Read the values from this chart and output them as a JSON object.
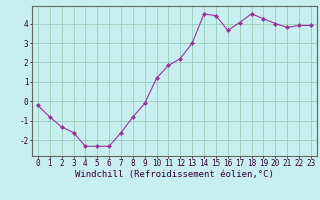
{
  "x": [
    0,
    1,
    2,
    3,
    4,
    5,
    6,
    7,
    8,
    9,
    10,
    11,
    12,
    13,
    14,
    15,
    16,
    17,
    18,
    19,
    20,
    21,
    22,
    23
  ],
  "y": [
    -0.2,
    -0.8,
    -1.3,
    -1.6,
    -2.3,
    -2.3,
    -2.3,
    -1.6,
    -0.8,
    -0.1,
    1.2,
    1.85,
    2.2,
    3.0,
    4.5,
    4.4,
    3.65,
    4.05,
    4.5,
    4.25,
    4.0,
    3.8,
    3.9,
    3.9
  ],
  "xlim": [
    -0.5,
    23.5
  ],
  "ylim": [
    -2.8,
    4.9
  ],
  "yticks": [
    -2,
    -1,
    0,
    1,
    2,
    3,
    4
  ],
  "xticks": [
    0,
    1,
    2,
    3,
    4,
    5,
    6,
    7,
    8,
    9,
    10,
    11,
    12,
    13,
    14,
    15,
    16,
    17,
    18,
    19,
    20,
    21,
    22,
    23
  ],
  "xlabel": "Windchill (Refroidissement éolien,°C)",
  "line_color": "#993399",
  "marker": "D",
  "marker_size": 2.0,
  "bg_color": "#c8eef0",
  "grid_color": "#99ccbb",
  "axis_color": "#666666",
  "tick_color": "#330033",
  "label_color": "#330033",
  "tick_fontsize": 5.5,
  "xlabel_fontsize": 6.5,
  "xlabel_fontfamily": "monospace"
}
